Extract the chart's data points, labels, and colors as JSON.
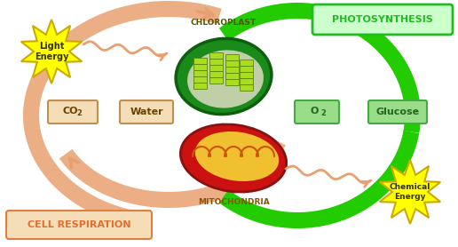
{
  "bg_color": "#ffffff",
  "photosynthesis_label": "PHOTOSYNTHESIS",
  "cell_respiration_label": "CELL RESPIRATION",
  "chloroplast_label": "CHLOROPLAST",
  "mitochondria_label": "MITOCHONDRIA",
  "light_energy_label": "Light\nEnergy",
  "chemical_energy_label": "Chemical\nEnergy",
  "co2_label": "CO",
  "co2_sub": "2",
  "water_label": "Water",
  "o2_label": "O",
  "o2_sub": "2",
  "glucose_label": "Glucose",
  "green_arrow_color": "#22cc00",
  "orange_arrow_color": "#e8a070",
  "star_yellow": "#ffff00",
  "star_outline": "#ccaa00",
  "co2_box_color": "#f5ddb8",
  "water_box_color": "#f5ddb8",
  "o2_box_color": "#99dd88",
  "glucose_box_color": "#99dd88",
  "photo_box_color": "#ccffcc",
  "photo_border_color": "#22bb22",
  "photo_text_color": "#22bb22",
  "cell_resp_text_color": "#e07030",
  "cell_resp_box_color": "#f5ddb8",
  "cell_resp_border_color": "#e08040",
  "chloro_text_color": "#555500",
  "mito_text_color": "#885500"
}
